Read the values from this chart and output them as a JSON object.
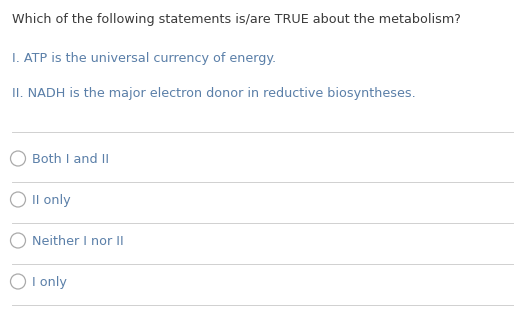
{
  "background_color": "#ffffff",
  "question": "Which of the following statements is/are TRUE about the metabolism?",
  "statements": [
    "I. ATP is the universal currency of energy.",
    "II. NADH is the major electron donor in reductive biosyntheses."
  ],
  "options": [
    "Both I and II",
    "II only",
    "Neither I nor II",
    "I only"
  ],
  "question_color": "#3a3a3a",
  "statement_color": "#5a7fa8",
  "option_color": "#5a7fa8",
  "line_color": "#d0d0d0",
  "circle_color": "#aaaaaa",
  "question_fontsize": 9.2,
  "statement_fontsize": 9.2,
  "option_fontsize": 9.2,
  "fig_width": 5.18,
  "fig_height": 3.14,
  "dpi": 100
}
